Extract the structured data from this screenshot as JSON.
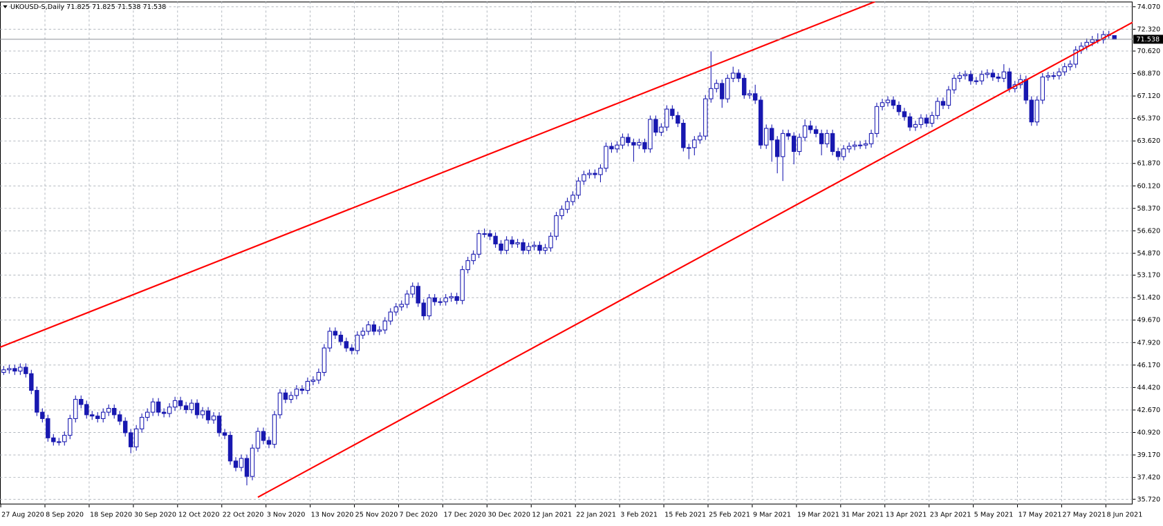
{
  "chart_data": {
    "type": "candlestick",
    "title": "UKOUSD-S,Daily  71.825 71.825 71.538 71.538",
    "categories": [
      "27 Aug 2020",
      null,
      null,
      null,
      null,
      null,
      null,
      null,
      "8 Sep 2020",
      null,
      null,
      null,
      null,
      null,
      null,
      null,
      "18 Sep 2020",
      null,
      null,
      null,
      null,
      null,
      null,
      null,
      "30 Sep 2020",
      null,
      null,
      null,
      null,
      null,
      null,
      null,
      "12 Oct 2020",
      null,
      null,
      null,
      null,
      null,
      null,
      null,
      "22 Oct 2020",
      null,
      null,
      null,
      null,
      null,
      null,
      null,
      "3 Nov 2020",
      null,
      null,
      null,
      null,
      null,
      null,
      null,
      "13 Nov 2020",
      null,
      null,
      null,
      null,
      null,
      null,
      null,
      "25 Nov 2020",
      null,
      null,
      null,
      null,
      null,
      null,
      null,
      "7 Dec 2020",
      null,
      null,
      null,
      null,
      null,
      null,
      null,
      "17 Dec 2020",
      null,
      null,
      null,
      null,
      null,
      null,
      null,
      "30 Dec 2020",
      null,
      null,
      null,
      null,
      null,
      null,
      null,
      "12 Jan 2021",
      null,
      null,
      null,
      null,
      null,
      null,
      null,
      "22 Jan 2021",
      null,
      null,
      null,
      null,
      null,
      null,
      null,
      "3 Feb 2021",
      null,
      null,
      null,
      null,
      null,
      null,
      null,
      "15 Feb 2021",
      null,
      null,
      null,
      null,
      null,
      null,
      null,
      "25 Feb 2021",
      null,
      null,
      null,
      null,
      null,
      null,
      null,
      "9 Mar 2021",
      null,
      null,
      null,
      null,
      null,
      null,
      null,
      "19 Mar 2021",
      null,
      null,
      null,
      null,
      null,
      null,
      null,
      "31 Mar 2021",
      null,
      null,
      null,
      null,
      null,
      null,
      null,
      "13 Apr 2021",
      null,
      null,
      null,
      null,
      null,
      null,
      null,
      "23 Apr 2021",
      null,
      null,
      null,
      null,
      null,
      null,
      null,
      "5 May 2021",
      null,
      null,
      null,
      null,
      null,
      null,
      null,
      "17 May 2021",
      null,
      null,
      null,
      null,
      null,
      null,
      null,
      "27 May 2021",
      null,
      null,
      null,
      null,
      null,
      null,
      null,
      "8 Jun 2021",
      null
    ],
    "ohlc": [
      [
        45.6,
        46.1,
        45.4,
        45.8
      ],
      [
        45.8,
        46.2,
        45.5,
        45.9
      ],
      [
        45.9,
        46.2,
        45.4,
        45.7
      ],
      [
        45.7,
        46.3,
        45.4,
        46.0
      ],
      [
        46.0,
        46.3,
        45.2,
        45.5
      ],
      [
        45.5,
        45.8,
        43.9,
        44.2
      ],
      [
        44.2,
        44.5,
        42.2,
        42.5
      ],
      [
        42.5,
        42.8,
        41.7,
        42.0
      ],
      [
        42.0,
        42.3,
        40.2,
        40.5
      ],
      [
        40.5,
        40.8,
        39.9,
        40.2
      ],
      [
        40.2,
        40.5,
        39.9,
        40.2
      ],
      [
        40.2,
        41.0,
        39.9,
        40.7
      ],
      [
        40.7,
        42.3,
        40.4,
        42.0
      ],
      [
        42.0,
        43.8,
        41.7,
        43.5
      ],
      [
        43.5,
        43.8,
        42.8,
        43.1
      ],
      [
        43.1,
        43.4,
        42.0,
        42.3
      ],
      [
        42.3,
        42.6,
        41.9,
        42.2
      ],
      [
        42.2,
        42.5,
        41.7,
        42.0
      ],
      [
        42.0,
        42.8,
        41.7,
        42.5
      ],
      [
        42.5,
        43.1,
        42.2,
        42.8
      ],
      [
        42.8,
        43.1,
        42.0,
        42.3
      ],
      [
        42.3,
        42.6,
        41.5,
        41.8
      ],
      [
        41.8,
        42.1,
        40.6,
        40.9
      ],
      [
        40.9,
        41.2,
        39.3,
        39.8
      ],
      [
        39.8,
        41.5,
        39.5,
        41.2
      ],
      [
        41.2,
        42.4,
        40.9,
        42.1
      ],
      [
        42.1,
        42.8,
        41.8,
        42.5
      ],
      [
        42.5,
        43.6,
        42.2,
        43.3
      ],
      [
        43.3,
        43.6,
        42.2,
        42.5
      ],
      [
        42.5,
        42.8,
        42.1,
        42.4
      ],
      [
        42.4,
        43.2,
        42.1,
        42.9
      ],
      [
        42.9,
        43.7,
        42.6,
        43.4
      ],
      [
        43.4,
        43.7,
        42.7,
        43.0
      ],
      [
        43.0,
        43.3,
        42.4,
        42.7
      ],
      [
        42.7,
        43.5,
        42.4,
        43.2
      ],
      [
        43.2,
        43.5,
        42.0,
        42.3
      ],
      [
        42.3,
        42.9,
        42.0,
        42.6
      ],
      [
        42.6,
        42.9,
        41.6,
        41.9
      ],
      [
        41.9,
        42.5,
        41.6,
        42.2
      ],
      [
        42.2,
        42.5,
        40.6,
        40.9
      ],
      [
        40.9,
        41.2,
        40.4,
        40.7
      ],
      [
        40.7,
        41.0,
        38.4,
        38.7
      ],
      [
        38.7,
        39.0,
        37.9,
        38.2
      ],
      [
        38.2,
        39.2,
        37.9,
        38.9
      ],
      [
        38.9,
        39.2,
        36.8,
        37.5
      ],
      [
        37.5,
        40.0,
        37.2,
        39.7
      ],
      [
        39.7,
        41.3,
        39.4,
        41.0
      ],
      [
        41.0,
        41.3,
        40.0,
        40.3
      ],
      [
        40.3,
        40.6,
        39.7,
        40.0
      ],
      [
        40.0,
        42.6,
        39.7,
        42.3
      ],
      [
        42.3,
        44.3,
        42.0,
        44.0
      ],
      [
        44.0,
        44.3,
        43.2,
        43.5
      ],
      [
        43.5,
        44.1,
        43.2,
        43.8
      ],
      [
        43.8,
        44.6,
        43.5,
        44.3
      ],
      [
        44.3,
        44.6,
        43.9,
        44.2
      ],
      [
        44.2,
        45.2,
        43.9,
        44.9
      ],
      [
        44.9,
        45.3,
        44.6,
        45.0
      ],
      [
        45.0,
        45.9,
        44.7,
        45.6
      ],
      [
        45.6,
        47.8,
        45.3,
        47.5
      ],
      [
        47.5,
        49.1,
        47.2,
        48.8
      ],
      [
        48.8,
        49.1,
        48.2,
        48.5
      ],
      [
        48.5,
        48.8,
        47.7,
        48.0
      ],
      [
        48.0,
        48.3,
        47.2,
        47.5
      ],
      [
        47.5,
        47.8,
        47.0,
        47.3
      ],
      [
        47.3,
        48.8,
        47.0,
        48.5
      ],
      [
        48.5,
        49.1,
        48.2,
        48.8
      ],
      [
        48.8,
        49.6,
        48.5,
        49.3
      ],
      [
        49.3,
        49.6,
        48.5,
        48.8
      ],
      [
        48.8,
        49.2,
        48.5,
        48.9
      ],
      [
        48.9,
        49.9,
        48.6,
        49.6
      ],
      [
        49.6,
        50.6,
        49.3,
        50.3
      ],
      [
        50.3,
        51.0,
        50.0,
        50.7
      ],
      [
        50.7,
        51.2,
        50.4,
        50.9
      ],
      [
        50.9,
        52.0,
        50.6,
        51.7
      ],
      [
        51.7,
        52.6,
        51.4,
        52.3
      ],
      [
        52.3,
        52.6,
        50.7,
        51.0
      ],
      [
        51.0,
        51.3,
        49.7,
        50.0
      ],
      [
        50.0,
        51.7,
        49.7,
        51.4
      ],
      [
        51.4,
        51.7,
        50.8,
        51.1
      ],
      [
        51.1,
        51.4,
        50.8,
        51.1
      ],
      [
        51.1,
        51.7,
        50.8,
        51.4
      ],
      [
        51.4,
        51.8,
        51.1,
        51.5
      ],
      [
        51.5,
        51.8,
        50.9,
        51.2
      ],
      [
        51.2,
        53.9,
        50.9,
        53.6
      ],
      [
        53.6,
        54.6,
        53.3,
        54.3
      ],
      [
        54.3,
        55.1,
        54.0,
        54.8
      ],
      [
        54.8,
        56.7,
        54.5,
        56.4
      ],
      [
        56.4,
        56.8,
        56.1,
        56.4
      ],
      [
        56.4,
        56.7,
        55.9,
        56.2
      ],
      [
        56.2,
        56.5,
        55.3,
        55.6
      ],
      [
        55.6,
        55.9,
        54.8,
        55.1
      ],
      [
        55.1,
        56.2,
        54.8,
        55.9
      ],
      [
        55.9,
        56.2,
        55.3,
        55.6
      ],
      [
        55.6,
        56.0,
        55.3,
        55.7
      ],
      [
        55.7,
        56.0,
        54.8,
        55.1
      ],
      [
        55.1,
        55.7,
        54.8,
        55.4
      ],
      [
        55.4,
        55.8,
        55.1,
        55.5
      ],
      [
        55.5,
        55.8,
        54.8,
        55.1
      ],
      [
        55.1,
        55.6,
        54.8,
        55.3
      ],
      [
        55.3,
        56.5,
        55.0,
        56.2
      ],
      [
        56.2,
        58.1,
        55.9,
        57.8
      ],
      [
        57.8,
        58.6,
        57.5,
        58.3
      ],
      [
        58.3,
        59.2,
        58.0,
        58.9
      ],
      [
        58.9,
        59.7,
        58.6,
        59.4
      ],
      [
        59.4,
        60.8,
        59.1,
        60.5
      ],
      [
        60.5,
        61.3,
        60.2,
        61.0
      ],
      [
        61.0,
        61.4,
        60.7,
        61.1
      ],
      [
        61.1,
        61.4,
        60.7,
        61.0
      ],
      [
        61.0,
        61.8,
        60.4,
        61.5
      ],
      [
        61.5,
        63.5,
        61.2,
        63.2
      ],
      [
        63.2,
        63.5,
        62.7,
        63.0
      ],
      [
        63.0,
        63.6,
        62.7,
        63.3
      ],
      [
        63.3,
        64.2,
        63.0,
        63.9
      ],
      [
        63.9,
        64.2,
        63.2,
        63.5
      ],
      [
        63.5,
        63.8,
        62.0,
        63.3
      ],
      [
        63.3,
        63.8,
        63.0,
        63.5
      ],
      [
        63.5,
        63.8,
        62.7,
        63.0
      ],
      [
        63.0,
        65.6,
        62.7,
        65.3
      ],
      [
        65.3,
        65.6,
        64.0,
        64.3
      ],
      [
        64.3,
        65.0,
        64.0,
        64.7
      ],
      [
        64.7,
        66.4,
        64.4,
        66.1
      ],
      [
        66.1,
        66.4,
        65.3,
        65.6
      ],
      [
        65.6,
        65.9,
        64.7,
        65.0
      ],
      [
        65.0,
        65.3,
        62.8,
        63.1
      ],
      [
        63.1,
        63.4,
        62.2,
        63.1
      ],
      [
        63.1,
        64.0,
        62.5,
        63.7
      ],
      [
        63.7,
        64.3,
        63.4,
        64.0
      ],
      [
        64.0,
        67.2,
        63.7,
        66.9
      ],
      [
        66.9,
        70.6,
        66.6,
        67.7
      ],
      [
        67.7,
        68.4,
        67.4,
        68.1
      ],
      [
        68.1,
        68.4,
        66.2,
        66.9
      ],
      [
        66.9,
        68.8,
        66.6,
        68.5
      ],
      [
        68.5,
        69.4,
        68.2,
        68.9
      ],
      [
        68.9,
        69.2,
        68.2,
        68.5
      ],
      [
        68.5,
        68.8,
        66.9,
        67.2
      ],
      [
        67.2,
        67.6,
        66.9,
        67.3
      ],
      [
        67.3,
        68.0,
        66.5,
        66.8
      ],
      [
        66.8,
        67.1,
        63.0,
        63.3
      ],
      [
        63.3,
        64.9,
        63.0,
        64.6
      ],
      [
        64.6,
        64.9,
        62.0,
        63.7
      ],
      [
        63.7,
        64.0,
        61.1,
        62.4
      ],
      [
        62.4,
        64.5,
        60.5,
        64.2
      ],
      [
        64.2,
        64.5,
        63.7,
        64.0
      ],
      [
        64.0,
        64.3,
        61.8,
        62.8
      ],
      [
        62.8,
        64.2,
        62.5,
        63.9
      ],
      [
        63.9,
        65.3,
        63.6,
        64.8
      ],
      [
        64.8,
        65.2,
        64.2,
        64.5
      ],
      [
        64.5,
        64.8,
        63.9,
        64.2
      ],
      [
        64.2,
        64.5,
        62.5,
        63.4
      ],
      [
        63.4,
        64.5,
        63.1,
        64.2
      ],
      [
        64.2,
        64.5,
        62.5,
        62.8
      ],
      [
        62.8,
        63.1,
        62.1,
        62.4
      ],
      [
        62.4,
        63.3,
        62.1,
        63.0
      ],
      [
        63.0,
        63.5,
        62.7,
        63.2
      ],
      [
        63.2,
        63.6,
        62.9,
        63.3
      ],
      [
        63.3,
        63.6,
        63.0,
        63.3
      ],
      [
        63.3,
        63.7,
        63.0,
        63.4
      ],
      [
        63.4,
        64.5,
        63.1,
        64.2
      ],
      [
        64.2,
        66.6,
        63.9,
        66.3
      ],
      [
        66.3,
        66.9,
        66.0,
        66.6
      ],
      [
        66.6,
        67.1,
        66.3,
        66.8
      ],
      [
        66.8,
        67.1,
        66.1,
        66.4
      ],
      [
        66.4,
        66.7,
        65.6,
        65.9
      ],
      [
        65.9,
        66.2,
        65.2,
        65.5
      ],
      [
        65.5,
        65.8,
        64.4,
        64.7
      ],
      [
        64.7,
        65.2,
        64.4,
        64.9
      ],
      [
        64.9,
        65.7,
        64.6,
        65.4
      ],
      [
        65.4,
        65.7,
        64.7,
        65.0
      ],
      [
        65.0,
        65.9,
        64.7,
        65.6
      ],
      [
        65.6,
        67.0,
        65.3,
        66.7
      ],
      [
        66.7,
        67.0,
        66.1,
        66.4
      ],
      [
        66.4,
        67.9,
        66.1,
        67.6
      ],
      [
        67.6,
        68.8,
        67.3,
        68.5
      ],
      [
        68.5,
        69.0,
        68.2,
        68.7
      ],
      [
        68.7,
        69.1,
        68.4,
        68.8
      ],
      [
        68.8,
        69.1,
        68.0,
        68.3
      ],
      [
        68.3,
        68.6,
        68.0,
        68.3
      ],
      [
        68.3,
        69.1,
        68.0,
        68.8
      ],
      [
        68.8,
        69.2,
        68.5,
        68.9
      ],
      [
        68.9,
        69.2,
        68.3,
        68.6
      ],
      [
        68.6,
        68.9,
        68.2,
        68.5
      ],
      [
        68.5,
        69.6,
        68.2,
        69.0
      ],
      [
        69.0,
        69.3,
        67.4,
        67.7
      ],
      [
        67.7,
        68.3,
        67.4,
        68.0
      ],
      [
        68.0,
        68.8,
        67.7,
        68.4
      ],
      [
        68.4,
        68.7,
        66.5,
        66.8
      ],
      [
        66.8,
        67.1,
        64.8,
        65.1
      ],
      [
        65.1,
        67.1,
        64.8,
        66.8
      ],
      [
        66.8,
        68.9,
        66.5,
        68.6
      ],
      [
        68.6,
        69.0,
        68.3,
        68.7
      ],
      [
        68.7,
        69.0,
        68.4,
        68.7
      ],
      [
        68.7,
        69.3,
        68.4,
        69.0
      ],
      [
        69.0,
        69.7,
        68.7,
        69.4
      ],
      [
        69.4,
        69.9,
        69.1,
        69.6
      ],
      [
        69.6,
        71.0,
        69.3,
        70.7
      ],
      [
        70.7,
        71.3,
        70.4,
        71.0
      ],
      [
        71.0,
        71.6,
        70.7,
        71.3
      ],
      [
        71.3,
        71.8,
        71.0,
        71.5
      ],
      [
        71.5,
        72.0,
        71.2,
        71.5
      ],
      [
        71.5,
        72.2,
        71.2,
        71.9
      ],
      [
        71.9,
        72.2,
        71.6,
        71.9
      ],
      [
        71.825,
        71.825,
        71.538,
        71.538
      ]
    ],
    "candle_color": "#1818b0",
    "bull_fill": "#ffffff",
    "bear_fill": "#1818b0",
    "ylim": [
      35.32,
      74.47
    ],
    "yticks": [
      {
        "value": 74.07,
        "label": "74.070"
      },
      {
        "value": 72.32,
        "label": "72.320"
      },
      {
        "value": 70.62,
        "label": "70.620"
      },
      {
        "value": 68.87,
        "label": "68.870"
      },
      {
        "value": 67.12,
        "label": "67.120"
      },
      {
        "value": 65.37,
        "label": "65.370"
      },
      {
        "value": 63.62,
        "label": "63.620"
      },
      {
        "value": 61.87,
        "label": "61.870"
      },
      {
        "value": 60.12,
        "label": "60.120"
      },
      {
        "value": 58.37,
        "label": "58.370"
      },
      {
        "value": 56.62,
        "label": "56.620"
      },
      {
        "value": 54.87,
        "label": "54.870"
      },
      {
        "value": 53.17,
        "label": "53.170"
      },
      {
        "value": 51.42,
        "label": "51.420"
      },
      {
        "value": 49.67,
        "label": "49.670"
      },
      {
        "value": 47.92,
        "label": "47.920"
      },
      {
        "value": 46.17,
        "label": "46.170"
      },
      {
        "value": 44.42,
        "label": "44.420"
      },
      {
        "value": 42.67,
        "label": "42.670"
      },
      {
        "value": 40.92,
        "label": "40.920"
      },
      {
        "value": 39.17,
        "label": "39.170"
      },
      {
        "value": 37.42,
        "label": "37.420"
      },
      {
        "value": 35.72,
        "label": "35.720"
      }
    ],
    "grid": true,
    "last_price": {
      "value": 71.538,
      "label": "71.538"
    },
    "trendlines": [
      {
        "color": "#ff0000",
        "x": [
          -0.7,
          157.7
        ],
        "y": [
          47.55,
          74.47
        ]
      },
      {
        "color": "#ff0000",
        "x": [
          46,
          204.3
        ],
        "y": [
          35.88,
          72.86
        ]
      }
    ]
  }
}
